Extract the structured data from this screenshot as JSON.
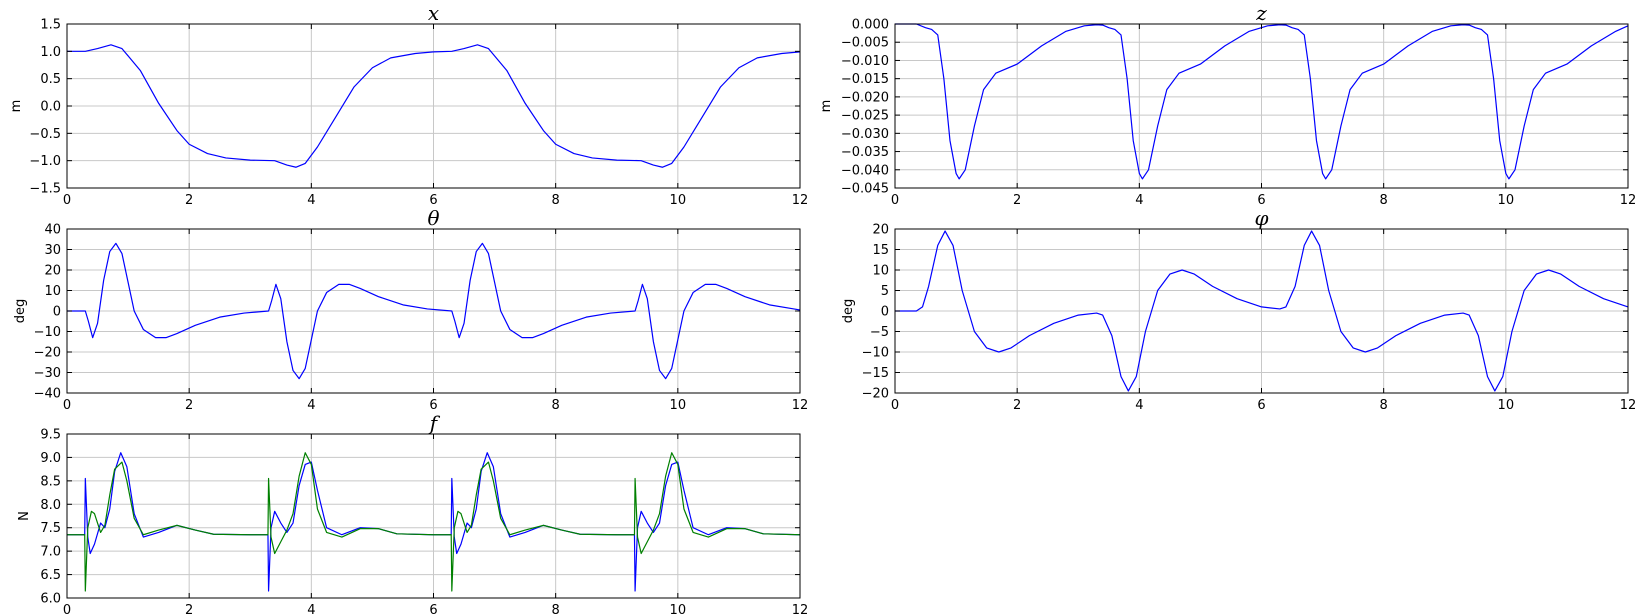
{
  "figure": {
    "background": "#ffffff",
    "grid": true,
    "grid_color": "#c8c8c8",
    "series_colors": [
      "#0000ff",
      "#008000"
    ]
  },
  "chart_data": [
    {
      "id": "x",
      "type": "line",
      "title": "x",
      "ylabel": "m",
      "xlim": [
        0,
        12
      ],
      "ylim": [
        -1.5,
        1.5
      ],
      "xticks": [
        0,
        2,
        4,
        6,
        8,
        10,
        12
      ],
      "yticks": [
        -1.5,
        -1.0,
        -0.5,
        0.0,
        0.5,
        1.0,
        1.5
      ],
      "ytick_labels": [
        "−1.5",
        "−1.0",
        "−0.5",
        "0.0",
        "0.5",
        "1.0",
        "1.5"
      ],
      "series": [
        {
          "color": "#0000ff",
          "x": [
            0,
            0.3,
            0.5,
            0.72,
            0.9,
            1.2,
            1.5,
            1.8,
            2.0,
            2.3,
            2.6,
            3.0,
            3.4,
            3.6,
            3.75,
            3.9,
            4.1,
            4.4,
            4.7,
            5.0,
            5.3,
            5.7,
            6.0,
            6.3,
            6.5,
            6.72,
            6.9,
            7.2,
            7.5,
            7.8,
            8.0,
            8.3,
            8.6,
            9.0,
            9.4,
            9.6,
            9.75,
            9.9,
            10.1,
            10.4,
            10.7,
            11.0,
            11.3,
            11.7,
            12.0
          ],
          "y": [
            1.0,
            1.0,
            1.05,
            1.12,
            1.05,
            0.65,
            0.05,
            -0.45,
            -0.7,
            -0.87,
            -0.95,
            -0.99,
            -1.0,
            -1.08,
            -1.12,
            -1.05,
            -0.75,
            -0.2,
            0.35,
            0.7,
            0.88,
            0.96,
            0.99,
            1.0,
            1.05,
            1.12,
            1.05,
            0.65,
            0.05,
            -0.45,
            -0.7,
            -0.87,
            -0.95,
            -0.99,
            -1.0,
            -1.08,
            -1.12,
            -1.05,
            -0.75,
            -0.2,
            0.35,
            0.7,
            0.88,
            0.96,
            0.99
          ]
        }
      ]
    },
    {
      "id": "z",
      "type": "line",
      "title": "z",
      "ylabel": "m",
      "xlim": [
        0,
        12
      ],
      "ylim": [
        -0.045,
        0.0
      ],
      "xticks": [
        0,
        2,
        4,
        6,
        8,
        10,
        12
      ],
      "yticks": [
        -0.045,
        -0.04,
        -0.035,
        -0.03,
        -0.025,
        -0.02,
        -0.015,
        -0.01,
        -0.005,
        0.0
      ],
      "ytick_labels": [
        "−0.045",
        "−0.040",
        "−0.035",
        "−0.030",
        "−0.025",
        "−0.020",
        "−0.015",
        "−0.010",
        "−0.005",
        "0.000"
      ],
      "series": [
        {
          "color": "#0000ff",
          "x": [
            0,
            0.35,
            0.5,
            0.6,
            0.7,
            0.8,
            0.9,
            1.0,
            1.05,
            1.15,
            1.3,
            1.45,
            1.65,
            2.0,
            2.4,
            2.8,
            3.1,
            3.3,
            3.4,
            3.5,
            3.6,
            3.7,
            3.8,
            3.9,
            4.0,
            4.05,
            4.15,
            4.3,
            4.45,
            4.65,
            5.0,
            5.4,
            5.8,
            6.1,
            6.3,
            6.4,
            6.5,
            6.6,
            6.7,
            6.8,
            6.9,
            7.0,
            7.05,
            7.15,
            7.3,
            7.45,
            7.65,
            8.0,
            8.4,
            8.8,
            9.1,
            9.3,
            9.4,
            9.5,
            9.6,
            9.7,
            9.8,
            9.9,
            10.0,
            10.05,
            10.15,
            10.3,
            10.45,
            10.65,
            11.0,
            11.4,
            11.8,
            12.0
          ],
          "y": [
            0.0,
            0.0,
            -0.001,
            -0.0015,
            -0.003,
            -0.015,
            -0.032,
            -0.041,
            -0.0425,
            -0.04,
            -0.028,
            -0.018,
            -0.0135,
            -0.011,
            -0.006,
            -0.002,
            -0.0005,
            -0.0002,
            -0.0003,
            -0.001,
            -0.0015,
            -0.003,
            -0.015,
            -0.032,
            -0.041,
            -0.0425,
            -0.04,
            -0.028,
            -0.018,
            -0.0135,
            -0.011,
            -0.006,
            -0.002,
            -0.0005,
            -0.0002,
            -0.0003,
            -0.001,
            -0.0015,
            -0.003,
            -0.015,
            -0.032,
            -0.041,
            -0.0425,
            -0.04,
            -0.028,
            -0.018,
            -0.0135,
            -0.011,
            -0.006,
            -0.002,
            -0.0005,
            -0.0002,
            -0.0003,
            -0.001,
            -0.0015,
            -0.003,
            -0.015,
            -0.032,
            -0.041,
            -0.0425,
            -0.04,
            -0.028,
            -0.018,
            -0.0135,
            -0.011,
            -0.006,
            -0.002,
            -0.0005
          ]
        }
      ]
    },
    {
      "id": "theta",
      "type": "line",
      "title": "θ",
      "ylabel": "deg",
      "xlim": [
        0,
        12
      ],
      "ylim": [
        -40,
        40
      ],
      "xticks": [
        0,
        2,
        4,
        6,
        8,
        10,
        12
      ],
      "yticks": [
        -40,
        -30,
        -20,
        -10,
        0,
        10,
        20,
        30,
        40
      ],
      "ytick_labels": [
        "−40",
        "−30",
        "−20",
        "−10",
        "0",
        "10",
        "20",
        "30",
        "40"
      ],
      "series": [
        {
          "color": "#0000ff",
          "x": [
            0,
            0.3,
            0.35,
            0.42,
            0.5,
            0.6,
            0.7,
            0.8,
            0.9,
            1.0,
            1.1,
            1.25,
            1.45,
            1.62,
            1.8,
            2.1,
            2.5,
            2.9,
            3.3,
            3.35,
            3.42,
            3.5,
            3.6,
            3.7,
            3.8,
            3.9,
            4.0,
            4.1,
            4.25,
            4.45,
            4.62,
            4.8,
            5.1,
            5.5,
            5.9,
            6.3,
            6.35,
            6.42,
            6.5,
            6.6,
            6.7,
            6.8,
            6.9,
            7.0,
            7.1,
            7.25,
            7.45,
            7.62,
            7.8,
            8.1,
            8.5,
            8.9,
            9.3,
            9.35,
            9.42,
            9.5,
            9.6,
            9.7,
            9.8,
            9.9,
            10.0,
            10.1,
            10.25,
            10.45,
            10.62,
            10.8,
            11.1,
            11.5,
            11.9,
            12.0
          ],
          "y": [
            0,
            0,
            -5,
            -13,
            -6,
            15,
            29,
            33,
            28,
            14,
            0,
            -9,
            -13,
            -13,
            -11,
            -7,
            -3,
            -1,
            0,
            5,
            13,
            6,
            -15,
            -29,
            -33,
            -28,
            -14,
            0,
            9,
            13,
            13,
            11,
            7,
            3,
            1,
            0,
            -5,
            -13,
            -6,
            15,
            29,
            33,
            28,
            14,
            0,
            -9,
            -13,
            -13,
            -11,
            -7,
            -3,
            -1,
            0,
            5,
            13,
            6,
            -15,
            -29,
            -33,
            -28,
            -14,
            0,
            9,
            13,
            13,
            11,
            7,
            3,
            1,
            0.5
          ]
        }
      ]
    },
    {
      "id": "phi",
      "type": "line",
      "title": "φ",
      "ylabel": "deg",
      "xlim": [
        0,
        12
      ],
      "ylim": [
        -20,
        20
      ],
      "xticks": [
        0,
        2,
        4,
        6,
        8,
        10,
        12
      ],
      "yticks": [
        -20,
        -15,
        -10,
        -5,
        0,
        5,
        10,
        15,
        20
      ],
      "ytick_labels": [
        "−20",
        "−15",
        "−10",
        "−5",
        "0",
        "5",
        "10",
        "15",
        "20"
      ],
      "series": [
        {
          "color": "#0000ff",
          "x": [
            0,
            0.35,
            0.45,
            0.55,
            0.7,
            0.82,
            0.95,
            1.1,
            1.3,
            1.5,
            1.7,
            1.9,
            2.2,
            2.6,
            3.0,
            3.3,
            3.4,
            3.55,
            3.7,
            3.82,
            3.95,
            4.1,
            4.3,
            4.5,
            4.7,
            4.9,
            5.2,
            5.6,
            6.0,
            6.3,
            6.4,
            6.55,
            6.7,
            6.82,
            6.95,
            7.1,
            7.3,
            7.5,
            7.7,
            7.9,
            8.2,
            8.6,
            9.0,
            9.3,
            9.4,
            9.55,
            9.7,
            9.82,
            9.95,
            10.1,
            10.3,
            10.5,
            10.7,
            10.9,
            11.2,
            11.6,
            12.0
          ],
          "y": [
            0,
            0,
            1,
            6,
            16,
            19.5,
            16,
            5,
            -5,
            -9,
            -10,
            -9,
            -6,
            -3,
            -1,
            -0.5,
            -1,
            -6,
            -16,
            -19.5,
            -16,
            -5,
            5,
            9,
            10,
            9,
            6,
            3,
            1,
            0.5,
            1,
            6,
            16,
            19.5,
            16,
            5,
            -5,
            -9,
            -10,
            -9,
            -6,
            -3,
            -1,
            -0.5,
            -1,
            -6,
            -16,
            -19.5,
            -16,
            -5,
            5,
            9,
            10,
            9,
            6,
            3,
            1
          ]
        }
      ]
    },
    {
      "id": "f",
      "type": "line",
      "title": "f",
      "ylabel": "N",
      "xlim": [
        0,
        12
      ],
      "ylim": [
        6.0,
        9.5
      ],
      "xticks": [
        0,
        2,
        4,
        6,
        8,
        10,
        12
      ],
      "yticks": [
        6.0,
        6.5,
        7.0,
        7.5,
        8.0,
        8.5,
        9.0,
        9.5
      ],
      "ytick_labels": [
        "6.0",
        "6.5",
        "7.0",
        "7.5",
        "8.0",
        "8.5",
        "9.0",
        "9.5"
      ],
      "series": [
        {
          "color": "#0000ff",
          "x": [
            0,
            0.29,
            0.3,
            0.34,
            0.38,
            0.45,
            0.55,
            0.62,
            0.7,
            0.78,
            0.88,
            0.98,
            1.1,
            1.25,
            1.5,
            1.8,
            2.1,
            2.4,
            3.0,
            3.29,
            3.3,
            3.34,
            3.4,
            3.5,
            3.6,
            3.7,
            3.8,
            3.9,
            4.0,
            4.1,
            4.25,
            4.5,
            4.8,
            5.1,
            5.4,
            6.0,
            6.29,
            6.3,
            6.34,
            6.38,
            6.45,
            6.55,
            6.62,
            6.7,
            6.78,
            6.88,
            6.98,
            7.1,
            7.25,
            7.5,
            7.8,
            8.1,
            8.4,
            9.0,
            9.29,
            9.3,
            9.34,
            9.4,
            9.5,
            9.6,
            9.7,
            9.8,
            9.9,
            10.0,
            10.1,
            10.25,
            10.5,
            10.8,
            11.1,
            11.4,
            12.0
          ],
          "y": [
            7.35,
            7.35,
            8.55,
            7.3,
            6.95,
            7.15,
            7.6,
            7.5,
            7.9,
            8.7,
            9.1,
            8.8,
            7.8,
            7.3,
            7.4,
            7.55,
            7.45,
            7.36,
            7.35,
            7.35,
            6.15,
            7.5,
            7.85,
            7.6,
            7.4,
            7.6,
            8.4,
            8.85,
            8.9,
            8.3,
            7.5,
            7.35,
            7.5,
            7.48,
            7.37,
            7.35,
            7.35,
            8.55,
            7.3,
            6.95,
            7.15,
            7.6,
            7.5,
            7.9,
            8.7,
            9.1,
            8.8,
            7.8,
            7.3,
            7.4,
            7.55,
            7.45,
            7.36,
            7.35,
            7.35,
            6.15,
            7.5,
            7.85,
            7.6,
            7.4,
            7.6,
            8.4,
            8.85,
            8.9,
            8.3,
            7.5,
            7.35,
            7.5,
            7.48,
            7.37,
            7.35
          ]
        },
        {
          "color": "#008000",
          "x": [
            0,
            0.29,
            0.3,
            0.34,
            0.4,
            0.45,
            0.55,
            0.62,
            0.7,
            0.78,
            0.9,
            0.98,
            1.1,
            1.25,
            1.5,
            1.8,
            2.1,
            2.4,
            3.0,
            3.29,
            3.3,
            3.34,
            3.4,
            3.5,
            3.6,
            3.7,
            3.8,
            3.9,
            4.0,
            4.1,
            4.25,
            4.5,
            4.8,
            5.1,
            5.4,
            6.0,
            6.29,
            6.3,
            6.34,
            6.4,
            6.45,
            6.55,
            6.62,
            6.7,
            6.78,
            6.9,
            6.98,
            7.1,
            7.25,
            7.5,
            7.8,
            8.1,
            8.4,
            9.0,
            9.29,
            9.3,
            9.34,
            9.4,
            9.5,
            9.6,
            9.7,
            9.8,
            9.9,
            10.0,
            10.1,
            10.25,
            10.5,
            10.8,
            11.1,
            11.4,
            12.0
          ],
          "y": [
            7.35,
            7.35,
            6.15,
            7.5,
            7.85,
            7.8,
            7.4,
            7.55,
            8.2,
            8.75,
            8.9,
            8.5,
            7.7,
            7.35,
            7.45,
            7.55,
            7.45,
            7.36,
            7.35,
            7.35,
            8.55,
            7.3,
            6.95,
            7.2,
            7.45,
            7.8,
            8.6,
            9.1,
            8.85,
            7.9,
            7.4,
            7.3,
            7.48,
            7.48,
            7.37,
            7.35,
            7.35,
            6.15,
            7.5,
            7.85,
            7.8,
            7.4,
            7.55,
            8.2,
            8.75,
            8.9,
            8.5,
            7.7,
            7.35,
            7.45,
            7.55,
            7.45,
            7.36,
            7.35,
            7.35,
            8.55,
            7.3,
            6.95,
            7.2,
            7.45,
            7.8,
            8.6,
            9.1,
            8.85,
            7.9,
            7.4,
            7.3,
            7.48,
            7.48,
            7.37,
            7.35
          ]
        }
      ]
    }
  ]
}
